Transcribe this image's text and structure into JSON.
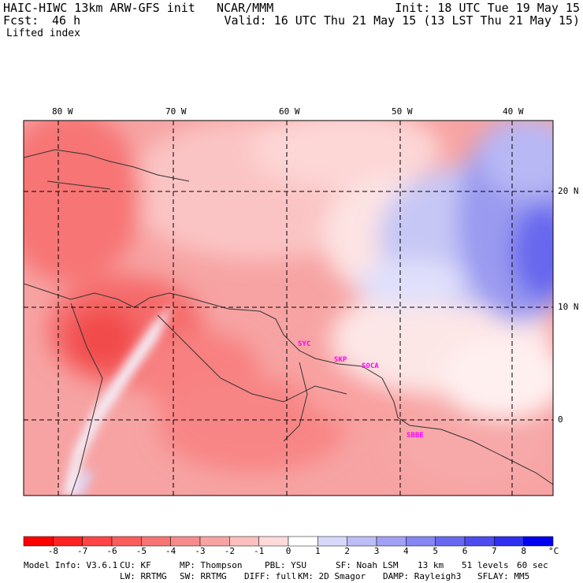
{
  "header": {
    "model": "HAIC-HIWC 13km ARW-GFS init",
    "org": "NCAR/MMM",
    "fcst_label": "Fcst:",
    "fcst_value": "46 h",
    "init": "Init: 18 UTC Tue 19 May 15",
    "valid": "Valid: 16 UTC Thu 21 May 15 (13 LST Thu 21 May 15)",
    "field": "Lifted index"
  },
  "map": {
    "lon_labels": [
      "80 W",
      "70 W",
      "60 W",
      "50 W",
      "40 W"
    ],
    "lat_labels": [
      "20 N",
      "10 N",
      "0"
    ],
    "sites": [
      "SYC",
      "SKP",
      "SOCA",
      "SBBE"
    ]
  },
  "colorbar": {
    "labels": [
      "-8",
      "-7",
      "-6",
      "-5",
      "-4",
      "-3",
      "-2",
      "-1",
      "0",
      "1",
      "2",
      "3",
      "4",
      "5",
      "6",
      "7",
      "8"
    ],
    "unit": "°C",
    "colors": [
      "#ff0000",
      "#ff2222",
      "#ff4545",
      "#fb5c5c",
      "#f77474",
      "#f58b8b",
      "#f7a3a3",
      "#fbbfbf",
      "#ffdada",
      "#ffffff",
      "#d8d8fb",
      "#bcbcf7",
      "#a0a0f5",
      "#8585f3",
      "#6868f1",
      "#4c4cef",
      "#2f2fef",
      "#0000ee"
    ]
  },
  "footer": {
    "line1": [
      "Model Info: V3.6.1",
      "CU: KF",
      "MP: Thompson",
      "PBL: YSU",
      "SF: Noah LSM",
      "13 km",
      "51 levels",
      "60 sec"
    ],
    "line2": [
      "LW: RRTMG",
      "SW: RRTMG",
      "DIFF: full",
      "KM: 2D Smagor",
      "DAMP: Rayleigh3",
      "SFLAY: MM5"
    ]
  }
}
